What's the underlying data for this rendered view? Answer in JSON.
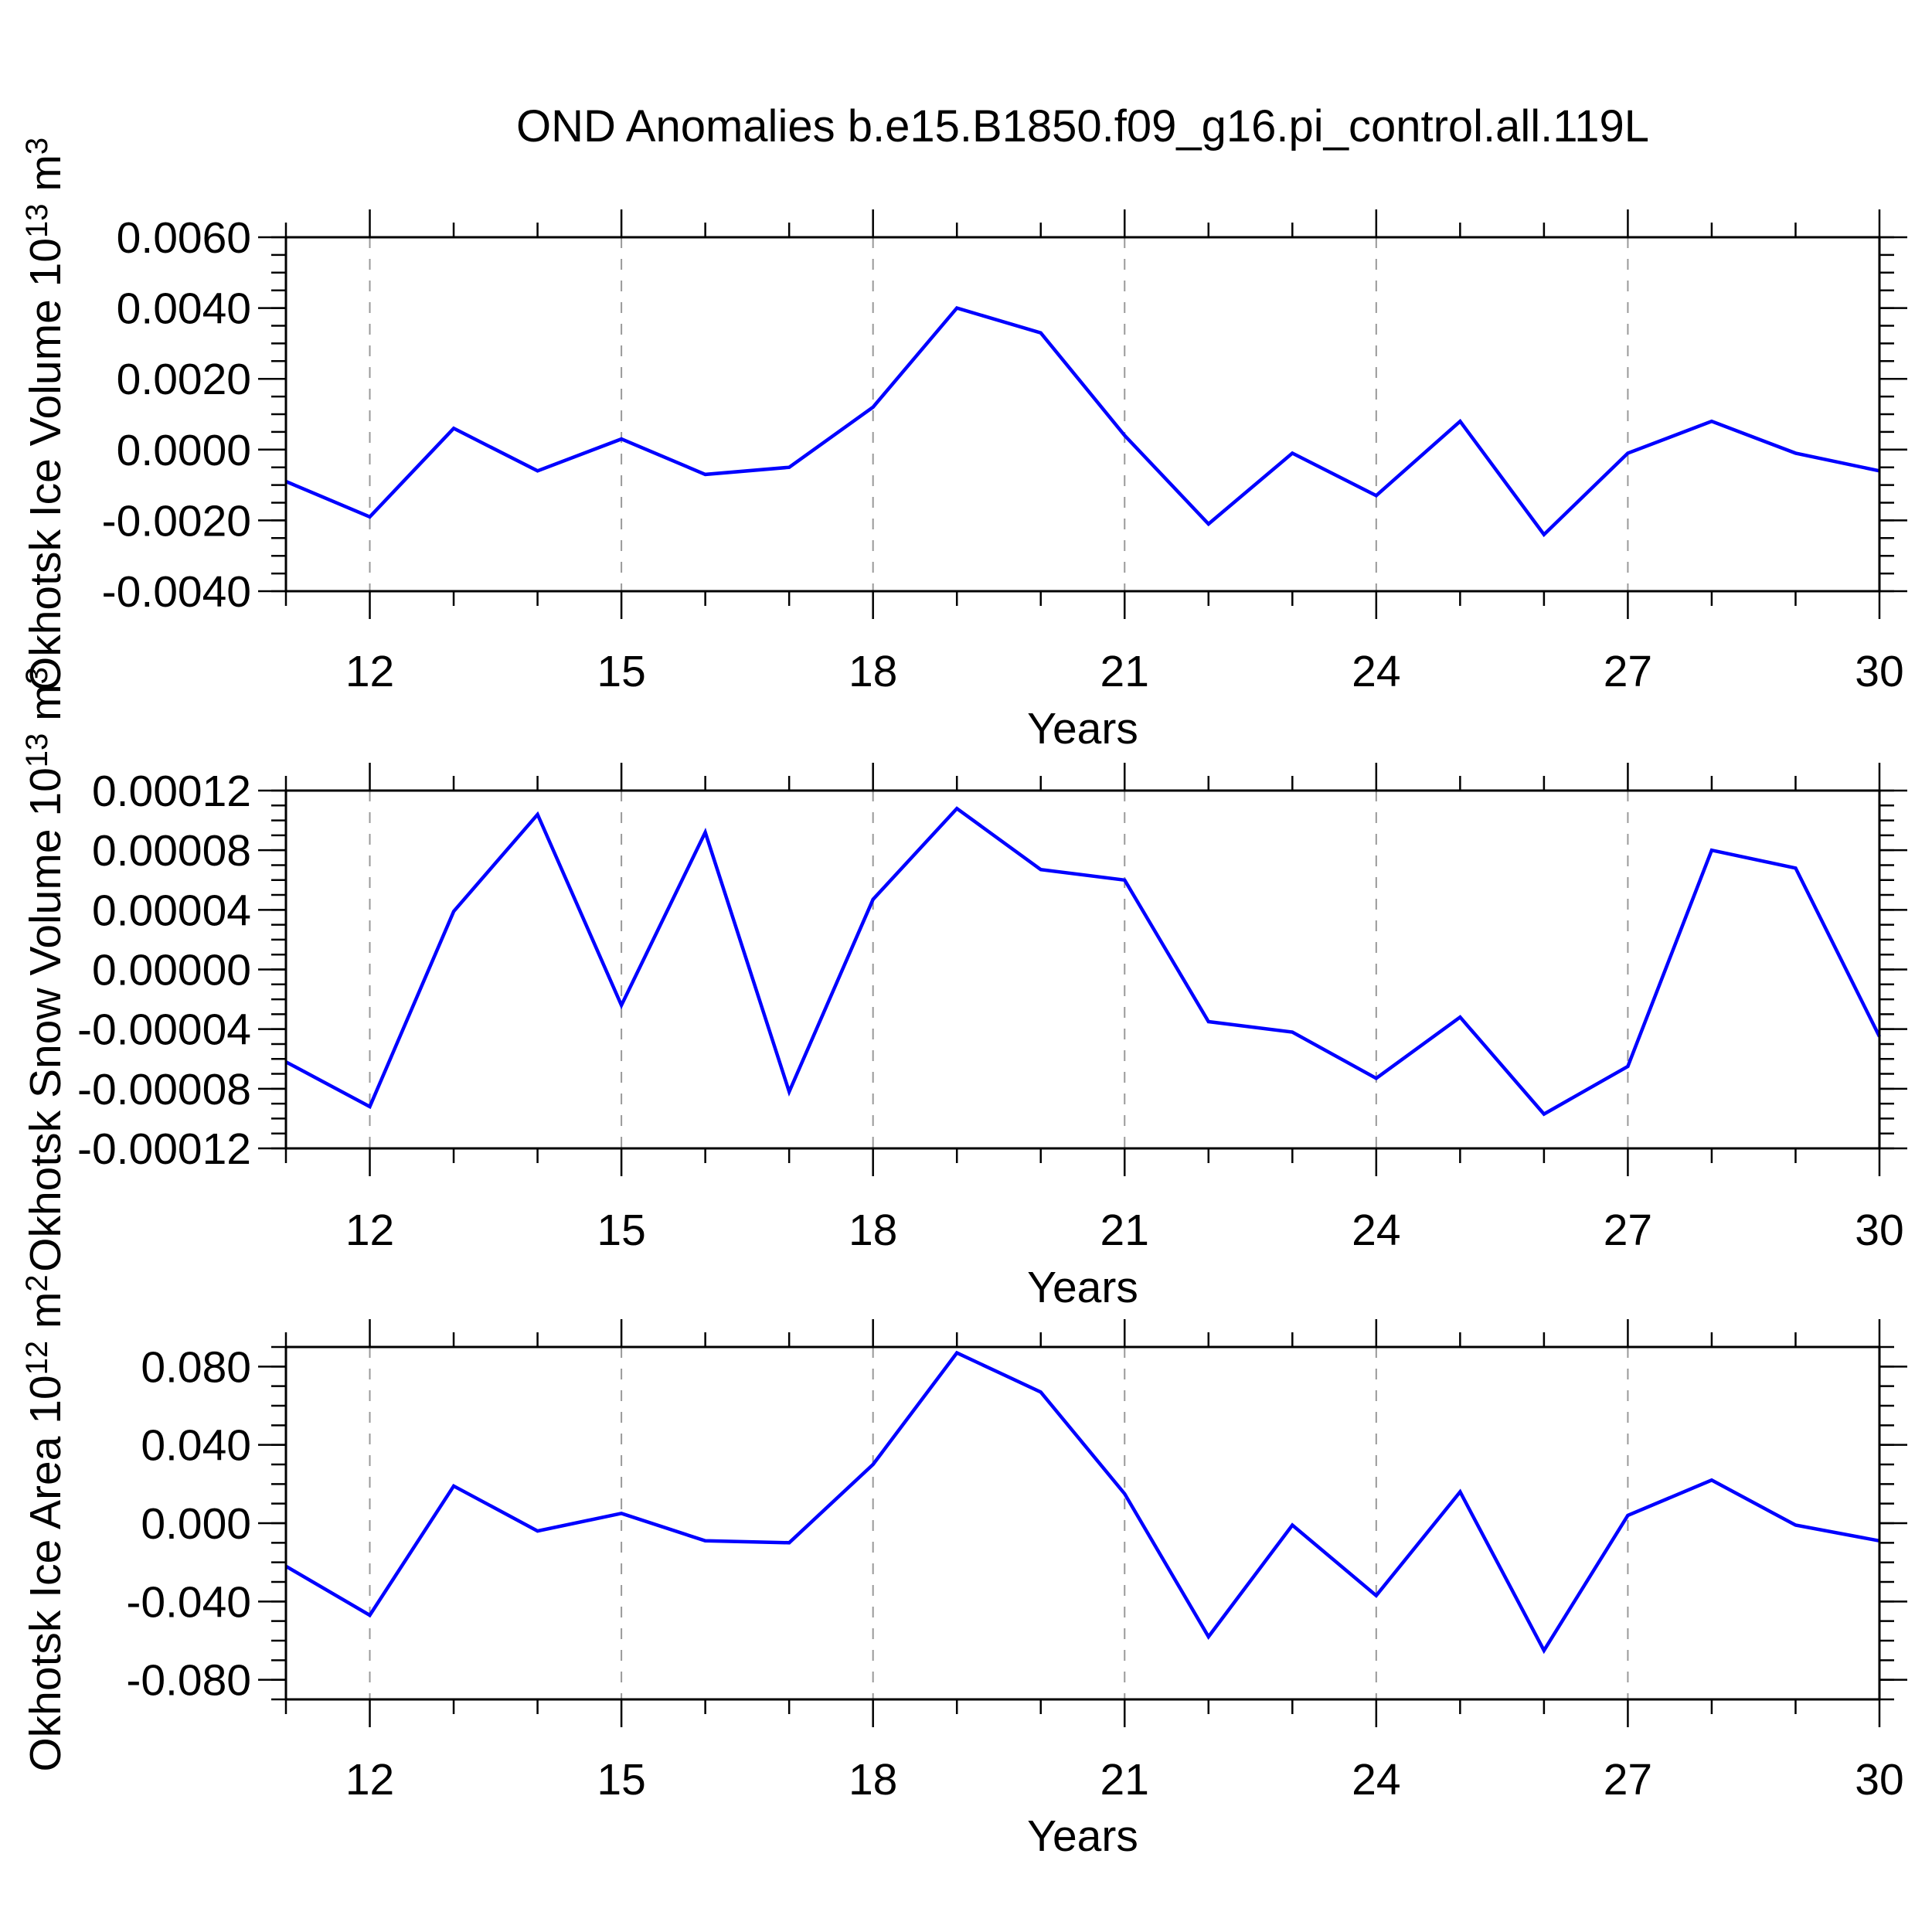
{
  "title": "OND Anomalies b.e15.B1850.f09_g16.pi_control.all.119L",
  "xlabel": "Years",
  "xtick_labels": [
    "12",
    "15",
    "18",
    "21",
    "24",
    "27",
    "30"
  ],
  "xtick_values": [
    12,
    15,
    18,
    21,
    24,
    27,
    30
  ],
  "gridline_years": [
    12,
    15,
    18,
    21,
    24,
    27
  ],
  "colors": {
    "line": "#0000FF",
    "grid": "#999999",
    "axis": "#000000",
    "background": "#FFFFFF"
  },
  "chart_data": [
    {
      "type": "line",
      "name": "okhotsk-ice-volume",
      "ylabel": "Okhotsk Ice Volume 10^13 m^3",
      "ylabel_parts": [
        {
          "t": "Okhotsk Ice Volume 10",
          "sup": false
        },
        {
          "t": "13",
          "sup": true
        },
        {
          "t": " m",
          "sup": false
        },
        {
          "t": "3",
          "sup": true
        }
      ],
      "x": [
        11,
        12,
        13,
        14,
        15,
        16,
        17,
        18,
        19,
        20,
        21,
        22,
        23,
        24,
        25,
        26,
        27,
        28,
        29,
        30
      ],
      "values": [
        -0.0009,
        -0.0019,
        0.0006,
        -0.0006,
        0.0003,
        -0.0007,
        -0.0005,
        0.0012,
        0.004,
        0.0033,
        0.0004,
        -0.0021,
        -0.0001,
        -0.0013,
        0.0008,
        -0.0024,
        -0.0001,
        0.0008,
        -0.0001,
        -0.0006
      ],
      "xlim": [
        11,
        30
      ],
      "ylim": [
        -0.004,
        0.006
      ],
      "ytick_values": [
        0.006,
        0.004,
        0.002,
        0.0,
        -0.002,
        -0.004
      ],
      "ytick_labels": [
        "0.0060",
        "0.0040",
        "0.0020",
        "0.0000",
        "-0.0020",
        "-0.0040"
      ],
      "yminor_step": 0.0005,
      "xminor_step": 1,
      "grid": "vertical-dashed",
      "legend": "none"
    },
    {
      "type": "line",
      "name": "okhotsk-snow-volume",
      "ylabel": "Okhotsk Snow Volume 10^13 m^3",
      "ylabel_parts": [
        {
          "t": "Okhotsk Snow Volume 10",
          "sup": false
        },
        {
          "t": "13",
          "sup": true
        },
        {
          "t": " m",
          "sup": false
        },
        {
          "t": "3",
          "sup": true
        }
      ],
      "x": [
        11,
        12,
        13,
        14,
        15,
        16,
        17,
        18,
        19,
        20,
        21,
        22,
        23,
        24,
        25,
        26,
        27,
        28,
        29,
        30
      ],
      "values": [
        -6.2e-05,
        -9.2e-05,
        3.9e-05,
        0.000104,
        -2.4e-05,
        9.2e-05,
        -8.2e-05,
        4.7e-05,
        0.000108,
        6.7e-05,
        6e-05,
        -3.5e-05,
        -4.2e-05,
        -7.3e-05,
        -3.2e-05,
        -9.7e-05,
        -6.5e-05,
        8e-05,
        6.8e-05,
        -4.5e-05
      ],
      "xlim": [
        11,
        30
      ],
      "ylim": [
        -0.00012,
        0.00012
      ],
      "ytick_values": [
        0.00012,
        8e-05,
        4e-05,
        0.0,
        -4e-05,
        -8e-05,
        -0.00012
      ],
      "ytick_labels": [
        "0.00012",
        "0.00008",
        "0.00004",
        "0.00000",
        "-0.00004",
        "-0.00008",
        "-0.00012"
      ],
      "yminor_step": 1e-05,
      "xminor_step": 1,
      "grid": "vertical-dashed",
      "legend": "none"
    },
    {
      "type": "line",
      "name": "okhotsk-ice-area",
      "ylabel": "Okhotsk Ice Area 10^12 m^2",
      "ylabel_parts": [
        {
          "t": "Okhotsk Ice Area 10",
          "sup": false
        },
        {
          "t": "12",
          "sup": true
        },
        {
          "t": " m",
          "sup": false
        },
        {
          "t": "2",
          "sup": true
        }
      ],
      "x": [
        11,
        12,
        13,
        14,
        15,
        16,
        17,
        18,
        19,
        20,
        21,
        22,
        23,
        24,
        25,
        26,
        27,
        28,
        29,
        30
      ],
      "values": [
        -0.022,
        -0.047,
        0.019,
        -0.004,
        0.005,
        -0.009,
        -0.01,
        0.03,
        0.087,
        0.067,
        0.015,
        -0.058,
        -0.001,
        -0.037,
        0.016,
        -0.065,
        0.004,
        0.022,
        -0.001,
        -0.009
      ],
      "xlim": [
        11,
        30
      ],
      "ylim": [
        -0.09,
        0.09
      ],
      "ytick_values": [
        0.08,
        0.04,
        0.0,
        -0.04,
        -0.08
      ],
      "ytick_labels": [
        "0.080",
        "0.040",
        "0.000",
        "-0.040",
        "-0.080"
      ],
      "yminor_step": 0.01,
      "xminor_step": 1,
      "grid": "vertical-dashed",
      "legend": "none"
    }
  ]
}
